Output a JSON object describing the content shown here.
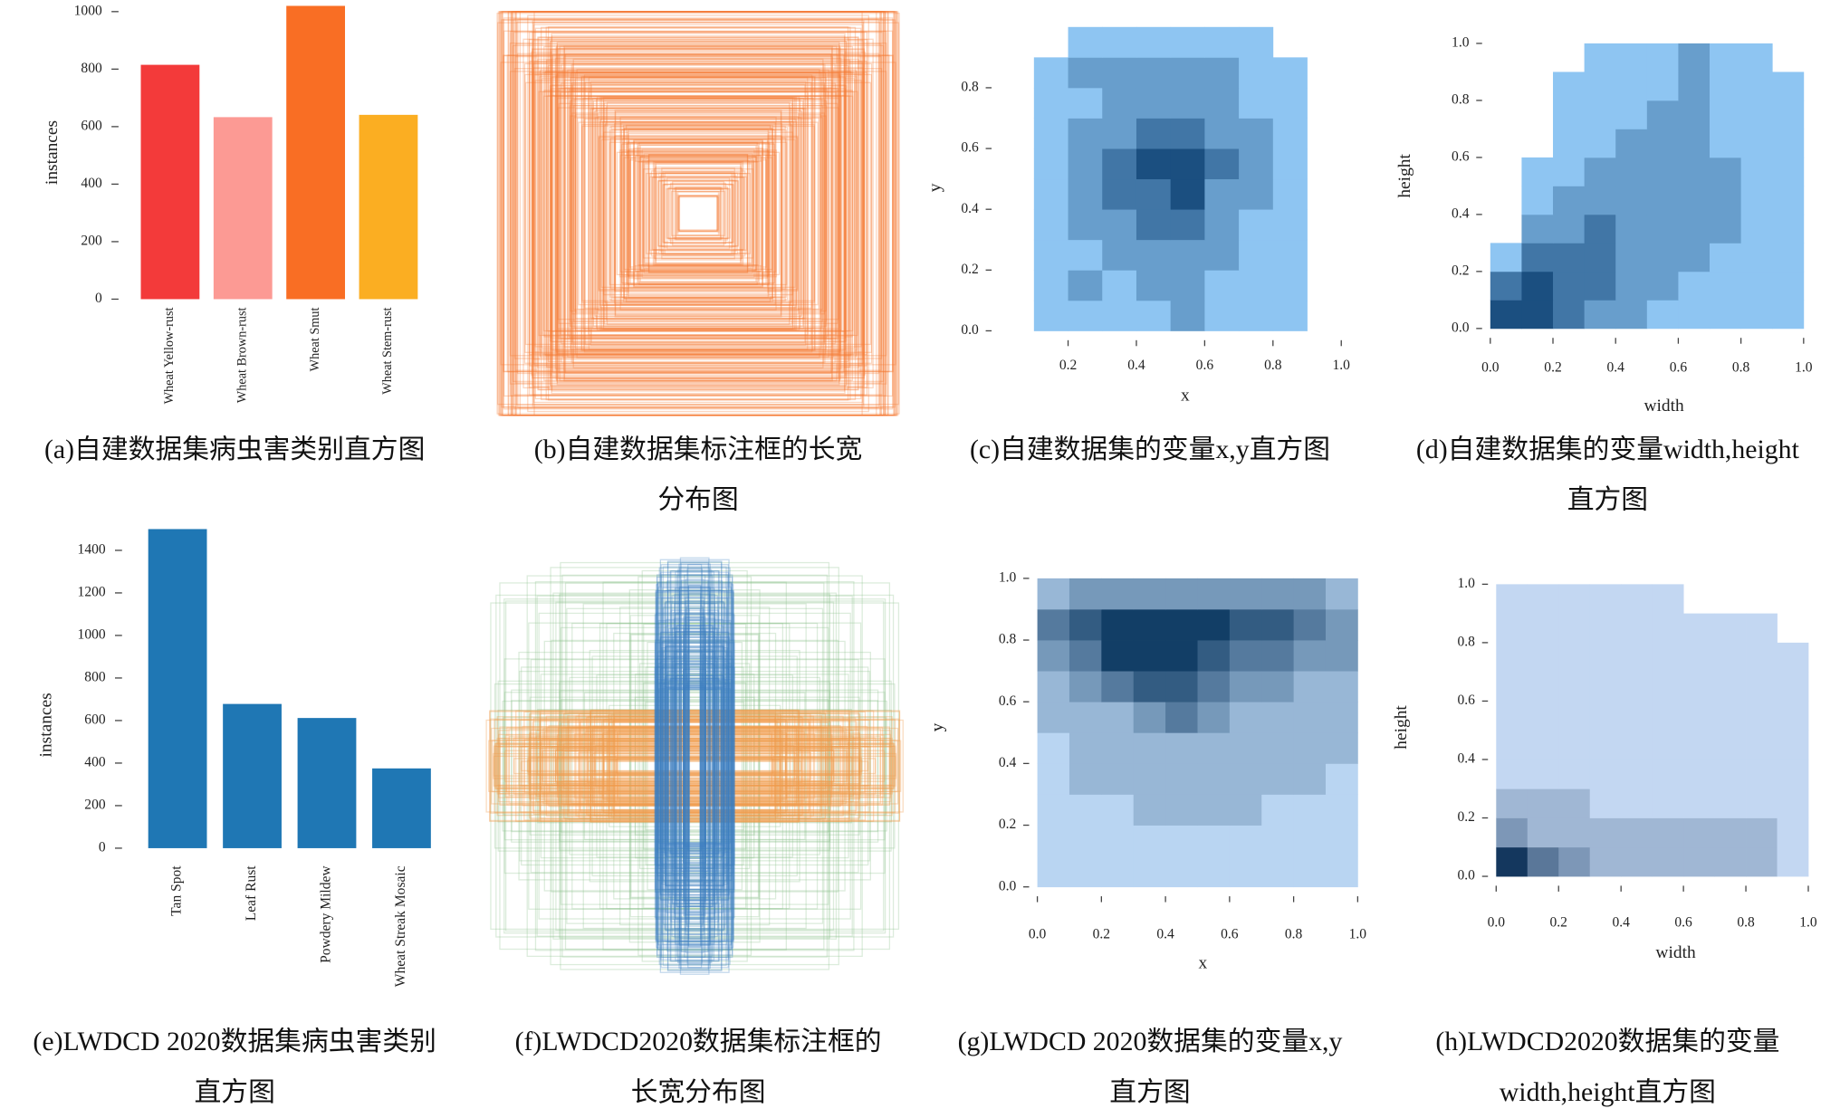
{
  "chart_data": [
    {
      "type": "bar",
      "caption": [
        "(a)自建数据集病虫害类别直方图"
      ],
      "ylabel": "instances",
      "categories": [
        "Wheat Yellow-rust",
        "Wheat Brown-rust",
        "Wheat Smut",
        "Wheat Stem-rust"
      ],
      "values": [
        815,
        633,
        1020,
        641
      ],
      "colors": [
        "#f33a3a",
        "#fc9a94",
        "#f96e24",
        "#fbae22"
      ],
      "ylim": [
        0,
        1020
      ],
      "yticks": [
        0,
        200,
        400,
        600,
        800,
        1000
      ]
    },
    {
      "type": "boxes",
      "caption": [
        "(b)自建数据集标注框的长宽",
        "分布图"
      ],
      "colors": [
        "#f4762f"
      ]
    },
    {
      "type": "heatmap",
      "caption": [
        "(c)自建数据集的变量x,y直方图"
      ],
      "xlabel": "x",
      "ylabel": "y",
      "xlim": [
        0,
        1
      ],
      "ylim": [
        0,
        1
      ],
      "xticks": [
        0.2,
        0.4,
        0.6,
        0.8,
        {
          "value": 1,
          "label": "1.0"
        }
      ],
      "yticks": [
        {
          "value": 0,
          "label": "0.0"
        },
        0.2,
        0.4,
        0.6,
        0.8
      ],
      "xbins": [
        0,
        0.1,
        0.2,
        0.3,
        0.4,
        0.5,
        0.6,
        0.7,
        0.8,
        0.9,
        1
      ],
      "ybins": [
        0,
        0.1,
        0.2,
        0.3,
        0.4,
        0.5,
        0.6,
        0.7,
        0.8,
        0.9,
        1
      ],
      "z": [
        [
          0,
          1,
          1,
          1,
          1,
          2,
          1,
          1,
          1,
          0
        ],
        [
          0,
          1,
          2,
          1,
          2,
          2,
          1,
          1,
          1,
          0
        ],
        [
          0,
          1,
          1,
          2,
          2,
          2,
          2,
          1,
          1,
          0
        ],
        [
          0,
          1,
          2,
          2,
          3,
          3,
          2,
          1,
          1,
          0
        ],
        [
          0,
          1,
          2,
          3,
          3,
          4,
          2,
          2,
          1,
          0
        ],
        [
          0,
          1,
          2,
          3,
          4,
          4,
          3,
          2,
          1,
          0
        ],
        [
          0,
          1,
          2,
          2,
          3,
          3,
          2,
          2,
          1,
          0
        ],
        [
          0,
          1,
          1,
          2,
          2,
          2,
          2,
          1,
          1,
          0
        ],
        [
          0,
          1,
          2,
          2,
          2,
          2,
          2,
          1,
          1,
          0
        ],
        [
          0,
          0,
          1,
          1,
          1,
          1,
          1,
          1,
          0,
          0
        ]
      ],
      "colors": [
        "#8ec5f2",
        "#1b4f80"
      ]
    },
    {
      "type": "heatmap",
      "caption": [
        "(d)自建数据集的变量width,height",
        "直方图"
      ],
      "xlabel": "width",
      "ylabel": "height",
      "xlim": [
        0,
        1
      ],
      "ylim": [
        0,
        1
      ],
      "xticks": [
        {
          "value": 0,
          "label": "0.0"
        },
        0.2,
        0.4,
        0.6,
        0.8,
        {
          "value": 1,
          "label": "1.0"
        }
      ],
      "yticks": [
        {
          "value": 0,
          "label": "0.0"
        },
        0.2,
        0.4,
        0.6,
        0.8,
        {
          "value": 1,
          "label": "1.0"
        }
      ],
      "xbins": [
        0,
        0.1,
        0.2,
        0.3,
        0.4,
        0.5,
        0.6,
        0.7,
        0.8,
        0.9,
        1
      ],
      "ybins": [
        0,
        0.1,
        0.2,
        0.3,
        0.4,
        0.5,
        0.6,
        0.7,
        0.8,
        0.9,
        1
      ],
      "z": [
        [
          4,
          4,
          3,
          2,
          2,
          1,
          1,
          1,
          1,
          1
        ],
        [
          3,
          4,
          3,
          3,
          2,
          2,
          1,
          1,
          1,
          1
        ],
        [
          1,
          3,
          3,
          3,
          2,
          2,
          2,
          1,
          1,
          1
        ],
        [
          0,
          2,
          2,
          3,
          2,
          2,
          2,
          2,
          1,
          1
        ],
        [
          0,
          1,
          2,
          2,
          2,
          2,
          2,
          2,
          1,
          1
        ],
        [
          0,
          1,
          1,
          2,
          2,
          2,
          2,
          2,
          1,
          1
        ],
        [
          0,
          0,
          1,
          1,
          2,
          2,
          2,
          1,
          1,
          1
        ],
        [
          0,
          0,
          1,
          1,
          1,
          2,
          2,
          1,
          1,
          1
        ],
        [
          0,
          0,
          1,
          1,
          1,
          1,
          2,
          1,
          1,
          1
        ],
        [
          0,
          0,
          0,
          1,
          1,
          1,
          2,
          1,
          1,
          0
        ]
      ],
      "colors": [
        "#8ec5f2",
        "#1b4f80"
      ]
    },
    {
      "type": "bar",
      "caption": [
        "(e)LWDCD 2020数据集病虫害类别",
        "直方图"
      ],
      "ylabel": "instances",
      "categories": [
        "Tan Spot",
        "Leaf Rust",
        "Powdery Mildew",
        "Wheat Streak Mosaic"
      ],
      "values": [
        1500,
        678,
        612,
        375
      ],
      "colors": [
        "#1f77b4",
        "#1f77b4",
        "#1f77b4",
        "#1f77b4"
      ],
      "ylim": [
        0,
        1500
      ],
      "yticks": [
        0,
        200,
        400,
        600,
        800,
        1000,
        1200,
        1400
      ]
    },
    {
      "type": "boxes",
      "caption": [
        "(f)LWDCD2020数据集标注框的",
        "长宽分布图"
      ],
      "colors": [
        "#3b7fc0",
        "#f29a4a",
        "#8cc08a"
      ]
    },
    {
      "type": "heatmap",
      "caption": [
        "(g)LWDCD 2020数据集的变量x,y",
        "直方图"
      ],
      "xlabel": "x",
      "ylabel": "y",
      "xlim": [
        0,
        1
      ],
      "ylim": [
        0,
        1
      ],
      "xticks": [
        {
          "value": 0,
          "label": "0.0"
        },
        0.2,
        0.4,
        0.6,
        0.8,
        {
          "value": 1,
          "label": "1.0"
        }
      ],
      "yticks": [
        {
          "value": 0,
          "label": "0.0"
        },
        0.2,
        0.4,
        0.6,
        0.8,
        {
          "value": 1,
          "label": "1.0"
        }
      ],
      "xbins": [
        0,
        0.1,
        0.2,
        0.3,
        0.4,
        0.5,
        0.6,
        0.7,
        0.8,
        0.9,
        1
      ],
      "ybins": [
        0,
        0.1,
        0.2,
        0.3,
        0.4,
        0.5,
        0.6,
        0.7,
        0.8,
        0.9,
        1
      ],
      "z": [
        [
          1,
          1,
          1,
          1,
          1,
          1,
          1,
          1,
          1,
          1
        ],
        [
          1,
          1,
          1,
          1,
          1,
          1,
          1,
          1,
          1,
          1
        ],
        [
          1,
          1,
          1,
          2,
          2,
          2,
          2,
          1,
          1,
          1
        ],
        [
          1,
          2,
          2,
          2,
          2,
          2,
          2,
          2,
          2,
          1
        ],
        [
          1,
          2,
          2,
          2,
          2,
          2,
          2,
          2,
          2,
          2
        ],
        [
          2,
          2,
          2,
          3,
          4,
          3,
          2,
          2,
          2,
          2
        ],
        [
          2,
          3,
          4,
          5,
          5,
          4,
          3,
          3,
          2,
          2
        ],
        [
          3,
          4,
          6,
          6,
          6,
          5,
          4,
          4,
          3,
          3
        ],
        [
          4,
          5,
          6,
          6,
          6,
          6,
          5,
          5,
          4,
          3
        ],
        [
          2,
          3,
          3,
          3,
          3,
          3,
          3,
          3,
          3,
          2
        ]
      ],
      "colors": [
        "#b9d5f2",
        "#123e66"
      ]
    },
    {
      "type": "heatmap",
      "caption": [
        "(h)LWDCD2020数据集的变量",
        "width,height直方图"
      ],
      "xlabel": "width",
      "ylabel": "height",
      "xlim": [
        0,
        1
      ],
      "ylim": [
        0,
        1
      ],
      "xticks": [
        {
          "value": 0,
          "label": "0.0"
        },
        0.2,
        0.4,
        0.6,
        0.8,
        {
          "value": 1,
          "label": "1.0"
        }
      ],
      "yticks": [
        {
          "value": 0,
          "label": "0.0"
        },
        0.2,
        0.4,
        0.6,
        0.8,
        {
          "value": 1,
          "label": "1.0"
        }
      ],
      "xbins": [
        0,
        0.1,
        0.2,
        0.3,
        0.4,
        0.5,
        0.6,
        0.7,
        0.8,
        0.9,
        1
      ],
      "ybins": [
        0,
        0.1,
        0.2,
        0.3,
        0.4,
        0.5,
        0.6,
        0.7,
        0.8,
        0.9,
        1
      ],
      "z": [
        [
          6,
          4,
          3,
          2,
          2,
          2,
          2,
          2,
          2,
          1
        ],
        [
          3,
          2,
          2,
          2,
          2,
          2,
          2,
          2,
          2,
          1
        ],
        [
          2,
          2,
          2,
          1,
          1,
          1,
          1,
          1,
          1,
          1
        ],
        [
          1,
          1,
          1,
          1,
          1,
          1,
          1,
          1,
          1,
          1
        ],
        [
          1,
          1,
          1,
          1,
          1,
          1,
          1,
          1,
          1,
          1
        ],
        [
          1,
          1,
          1,
          1,
          1,
          1,
          1,
          1,
          1,
          1
        ],
        [
          1,
          1,
          1,
          1,
          1,
          1,
          1,
          1,
          1,
          1
        ],
        [
          1,
          1,
          1,
          1,
          1,
          1,
          1,
          1,
          1,
          1
        ],
        [
          1,
          1,
          1,
          1,
          1,
          1,
          1,
          1,
          1,
          0
        ],
        [
          1,
          1,
          1,
          1,
          1,
          1,
          0,
          0,
          0,
          0
        ]
      ],
      "colors": [
        "#c3d7f2",
        "#14375e"
      ]
    }
  ]
}
